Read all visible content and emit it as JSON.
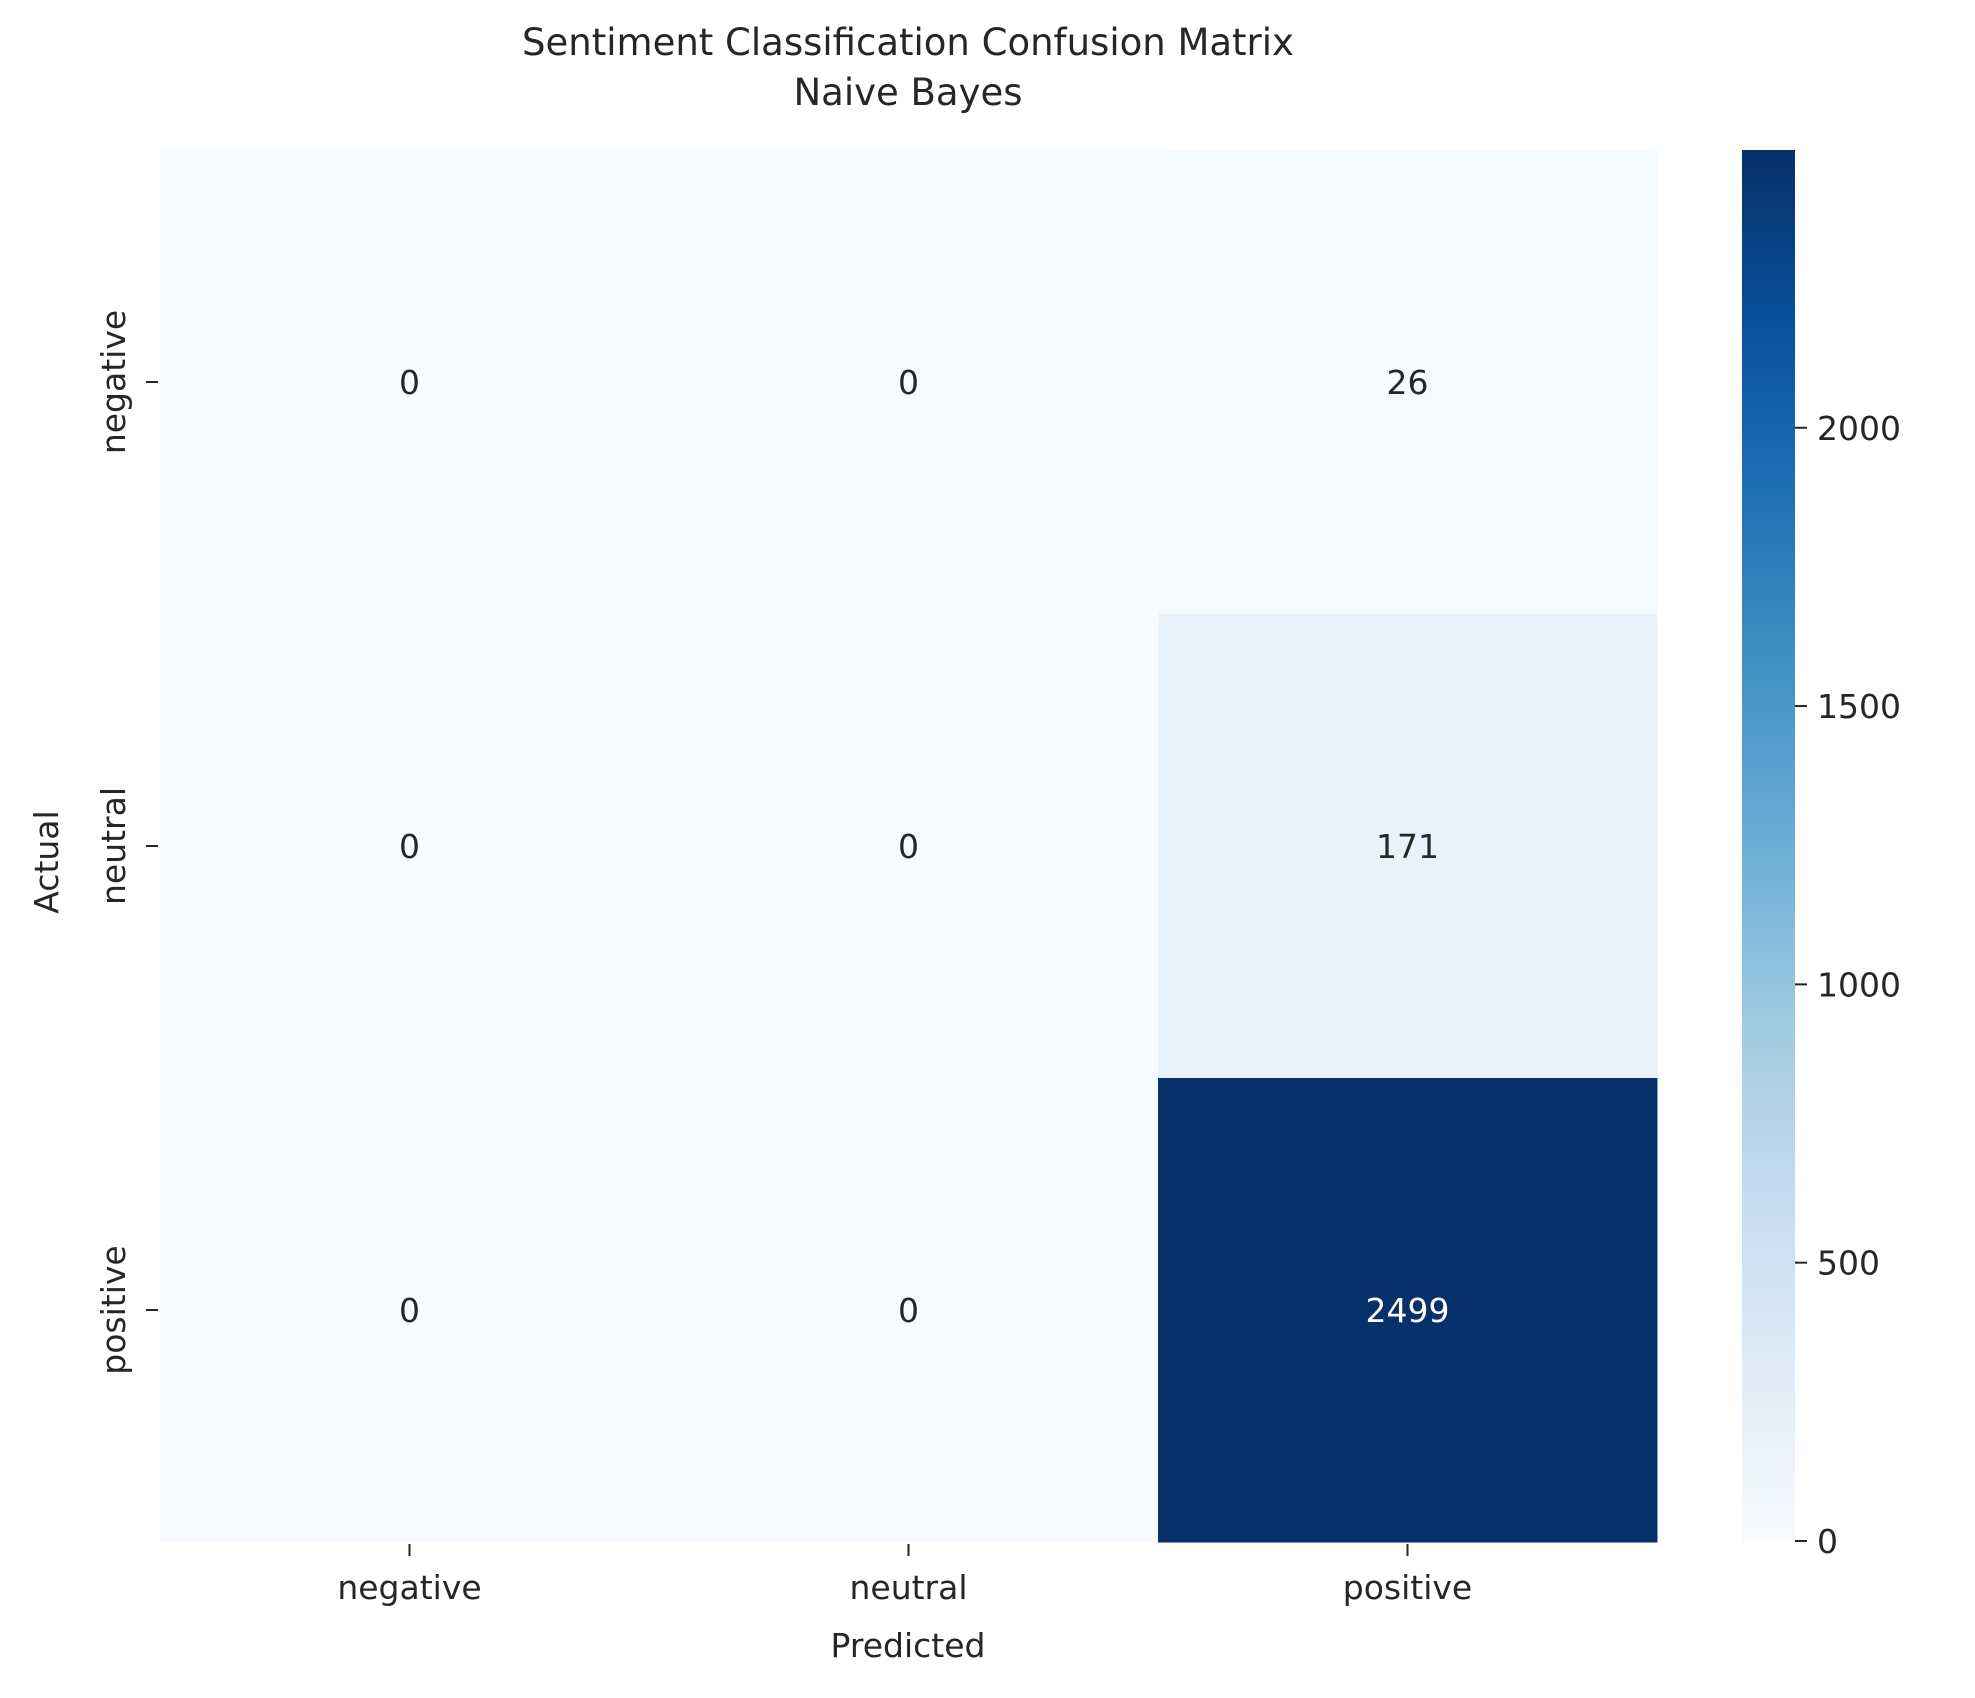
{
  "chart_data": {
    "type": "heatmap",
    "title": "Sentiment Classification Confusion Matrix",
    "subtitle": "Naive Bayes",
    "xlabel": "Predicted",
    "ylabel": "Actual",
    "x_categories": [
      "negative",
      "neutral",
      "positive"
    ],
    "y_categories": [
      "negative",
      "neutral",
      "positive"
    ],
    "values": [
      [
        0,
        0,
        26
      ],
      [
        0,
        0,
        171
      ],
      [
        0,
        0,
        2499
      ]
    ],
    "colormap": "Blues",
    "colorbar": {
      "range": [
        0,
        2499
      ],
      "ticks": [
        0,
        500,
        1000,
        1500,
        2000
      ]
    },
    "grid": false,
    "annotation_colors": {
      "dark_text": "#262626",
      "light_text": "#ffffff"
    }
  }
}
